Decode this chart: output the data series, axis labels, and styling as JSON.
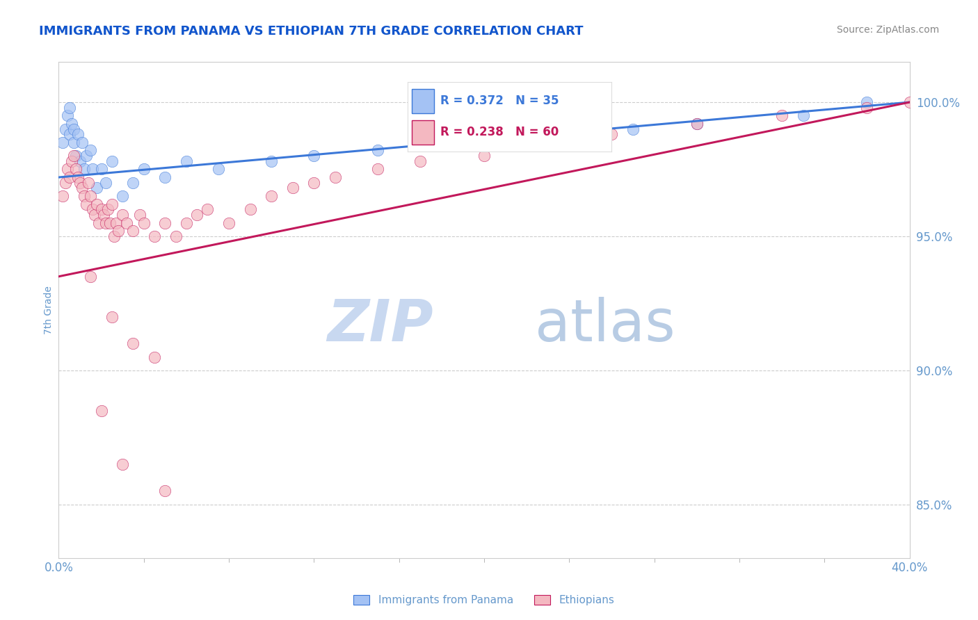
{
  "title": "IMMIGRANTS FROM PANAMA VS ETHIOPIAN 7TH GRADE CORRELATION CHART",
  "source": "Source: ZipAtlas.com",
  "ylabel": "7th Grade",
  "xlim": [
    0.0,
    40.0
  ],
  "ylim": [
    83.0,
    101.5
  ],
  "y_ticks_right": [
    85.0,
    90.0,
    95.0,
    100.0
  ],
  "y_tick_labels_right": [
    "85.0%",
    "90.0%",
    "95.0%",
    "100.0%"
  ],
  "panama_R": 0.372,
  "panama_N": 35,
  "ethiopia_R": 0.238,
  "ethiopia_N": 60,
  "panama_color": "#a4c2f4",
  "ethiopia_color": "#f4b8c1",
  "panama_line_color": "#3c78d8",
  "ethiopia_line_color": "#c2185b",
  "panama_scatter_x": [
    0.2,
    0.3,
    0.4,
    0.5,
    0.5,
    0.6,
    0.7,
    0.7,
    0.8,
    0.9,
    1.0,
    1.1,
    1.2,
    1.3,
    1.5,
    1.6,
    1.8,
    2.0,
    2.2,
    2.5,
    3.0,
    3.5,
    4.0,
    5.0,
    6.0,
    7.5,
    10.0,
    12.0,
    15.0,
    18.0,
    22.0,
    27.0,
    30.0,
    35.0,
    38.0
  ],
  "panama_scatter_y": [
    98.5,
    99.0,
    99.5,
    99.8,
    98.8,
    99.2,
    99.0,
    98.5,
    98.0,
    98.8,
    97.8,
    98.5,
    97.5,
    98.0,
    98.2,
    97.5,
    96.8,
    97.5,
    97.0,
    97.8,
    96.5,
    97.0,
    97.5,
    97.2,
    97.8,
    97.5,
    97.8,
    98.0,
    98.2,
    98.5,
    98.8,
    99.0,
    99.2,
    99.5,
    100.0
  ],
  "ethiopia_scatter_x": [
    0.2,
    0.3,
    0.4,
    0.5,
    0.6,
    0.7,
    0.8,
    0.9,
    1.0,
    1.1,
    1.2,
    1.3,
    1.4,
    1.5,
    1.6,
    1.7,
    1.8,
    1.9,
    2.0,
    2.1,
    2.2,
    2.3,
    2.4,
    2.5,
    2.6,
    2.7,
    2.8,
    3.0,
    3.2,
    3.5,
    3.8,
    4.0,
    4.5,
    5.0,
    5.5,
    6.0,
    6.5,
    7.0,
    8.0,
    9.0,
    10.0,
    11.0,
    12.0,
    13.0,
    15.0,
    17.0,
    20.0,
    23.0,
    26.0,
    30.0,
    34.0,
    38.0,
    40.0,
    1.5,
    2.5,
    3.5,
    4.5,
    2.0,
    3.0,
    5.0
  ],
  "ethiopia_scatter_y": [
    96.5,
    97.0,
    97.5,
    97.2,
    97.8,
    98.0,
    97.5,
    97.2,
    97.0,
    96.8,
    96.5,
    96.2,
    97.0,
    96.5,
    96.0,
    95.8,
    96.2,
    95.5,
    96.0,
    95.8,
    95.5,
    96.0,
    95.5,
    96.2,
    95.0,
    95.5,
    95.2,
    95.8,
    95.5,
    95.2,
    95.8,
    95.5,
    95.0,
    95.5,
    95.0,
    95.5,
    95.8,
    96.0,
    95.5,
    96.0,
    96.5,
    96.8,
    97.0,
    97.2,
    97.5,
    97.8,
    98.0,
    98.5,
    98.8,
    99.2,
    99.5,
    99.8,
    100.0,
    93.5,
    92.0,
    91.0,
    90.5,
    88.5,
    86.5,
    85.5
  ],
  "panama_trendline_y0": 97.2,
  "panama_trendline_y1": 100.0,
  "ethiopia_trendline_y0": 93.5,
  "ethiopia_trendline_y1": 100.0,
  "background_color": "#ffffff",
  "grid_color": "#cccccc",
  "title_color": "#1155cc",
  "axis_color": "#6699cc",
  "watermark_zip_color": "#c8d8f0",
  "watermark_atlas_color": "#b8cce4",
  "watermark_fontsize": 60
}
